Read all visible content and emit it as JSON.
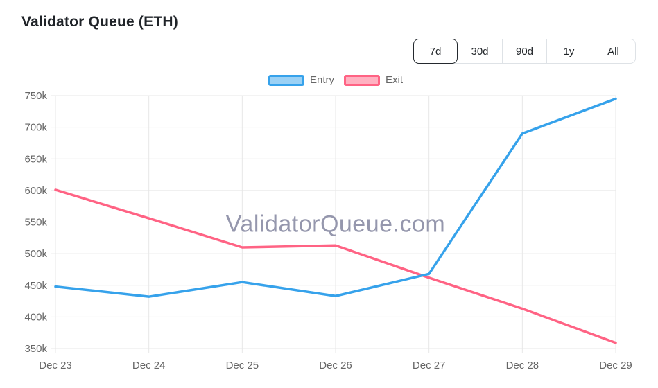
{
  "page": {
    "title": "Validator Queue (ETH)"
  },
  "controls": {
    "ranges": [
      {
        "label": "7d",
        "active": true
      },
      {
        "label": "30d",
        "active": false
      },
      {
        "label": "90d",
        "active": false
      },
      {
        "label": "1y",
        "active": false
      },
      {
        "label": "All",
        "active": false
      }
    ]
  },
  "watermark": "ValidatorQueue.com",
  "chart_data": {
    "type": "line",
    "title": "Validator Queue (ETH)",
    "categories": [
      "Dec 23",
      "Dec 24",
      "Dec 25",
      "Dec 26",
      "Dec 27",
      "Dec 28",
      "Dec 29"
    ],
    "series": [
      {
        "name": "Entry",
        "color": "#36a2eb",
        "fill": "#9bd1f5",
        "values": [
          448000,
          432000,
          455000,
          433000,
          468000,
          690000,
          745000
        ]
      },
      {
        "name": "Exit",
        "color": "#ff6384",
        "fill": "#ffb1c1",
        "values": [
          601000,
          556000,
          510000,
          513000,
          462000,
          413000,
          359000
        ]
      }
    ],
    "xlabel": "",
    "ylabel": "",
    "ylim": [
      350000,
      750000
    ],
    "ytick_step": 50000,
    "ytick_suffix": "k",
    "grid": true,
    "grid_color": "#e7e7e7",
    "tick_color": "#666666",
    "watermark_color": "#9597ad",
    "legend_position": "top-center"
  }
}
